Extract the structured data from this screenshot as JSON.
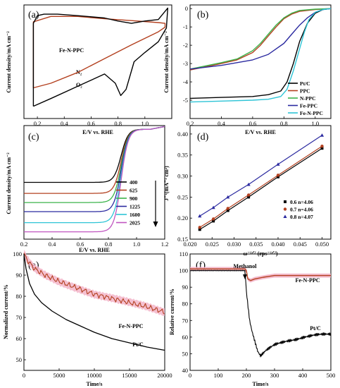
{
  "chart_data": [
    {
      "type": "line",
      "panel": "(a)",
      "xlabel": "E/V vs. RHE",
      "ylabel": "Current density/mA cm⁻²",
      "xlim": [
        0.1,
        1.2
      ],
      "xticks": [
        0.2,
        0.4,
        0.6,
        0.8,
        1.0
      ],
      "title": "Fe-N-PPC",
      "annotations": [
        "N₂",
        "O₂"
      ],
      "series": [
        {
          "name": "N2",
          "color": "#b3401f",
          "x": [
            0.17,
            0.3,
            0.5,
            0.7,
            0.9,
            1.1,
            1.15,
            1.15,
            1.1,
            0.9,
            0.7,
            0.5,
            0.3,
            0.17,
            0.17
          ],
          "y": [
            -2.6,
            -2.3,
            -1.6,
            -0.7,
            0.2,
            1.05,
            1.35,
            1.6,
            1.65,
            1.78,
            1.9,
            2.05,
            2.05,
            1.7,
            -2.6
          ]
        },
        {
          "name": "O2",
          "color": "#000000",
          "x": [
            0.17,
            0.3,
            0.5,
            0.7,
            0.78,
            0.82,
            0.86,
            0.92,
            1.0,
            1.1,
            1.16,
            1.17,
            1.1,
            1.0,
            0.9,
            0.8,
            0.7,
            0.5,
            0.35,
            0.25,
            0.2,
            0.17,
            0.17
          ],
          "y": [
            -3.8,
            -3.3,
            -2.5,
            -1.7,
            -2.3,
            -3.1,
            -2.7,
            -0.9,
            -0.3,
            0.4,
            1.3,
            2.6,
            1.85,
            1.75,
            1.6,
            1.75,
            1.95,
            2.1,
            2.2,
            2.2,
            2.1,
            1.6,
            -3.8
          ]
        }
      ]
    },
    {
      "type": "line",
      "panel": "(b)",
      "xlabel": "E/V vs. RHE",
      "ylabel": "Current density/mA cm⁻²",
      "xlim": [
        0.2,
        1.1
      ],
      "ylim": [
        -6,
        0.2
      ],
      "xticks": [
        0.2,
        0.4,
        0.6,
        0.8,
        1.0
      ],
      "yticks": [
        0,
        -1,
        -2,
        -3,
        -4,
        -5
      ],
      "series": [
        {
          "name": "Pt/C",
          "color": "#000000",
          "x": [
            0.2,
            0.4,
            0.6,
            0.7,
            0.78,
            0.82,
            0.86,
            0.9,
            0.95,
            1.0,
            1.05,
            1.1
          ],
          "y": [
            -4.9,
            -4.85,
            -4.8,
            -4.7,
            -4.5,
            -4.0,
            -3.0,
            -1.8,
            -0.8,
            -0.25,
            -0.05,
            0
          ]
        },
        {
          "name": "PPC",
          "color": "#b3401f",
          "x": [
            0.2,
            0.4,
            0.5,
            0.6,
            0.65,
            0.7,
            0.75,
            0.8,
            0.85,
            0.9,
            1.0,
            1.1
          ],
          "y": [
            -3.35,
            -3.0,
            -2.8,
            -2.4,
            -2.0,
            -1.5,
            -1.0,
            -0.55,
            -0.3,
            -0.15,
            -0.05,
            0
          ]
        },
        {
          "name": "N-PPC",
          "color": "#3bb34a",
          "x": [
            0.2,
            0.4,
            0.5,
            0.6,
            0.65,
            0.7,
            0.75,
            0.8,
            0.85,
            0.9,
            1.0,
            1.1
          ],
          "y": [
            -3.3,
            -2.95,
            -2.75,
            -2.3,
            -1.9,
            -1.4,
            -0.9,
            -0.5,
            -0.25,
            -0.1,
            -0.03,
            0
          ]
        },
        {
          "name": "Fe-PPC",
          "color": "#2b2aa0",
          "x": [
            0.2,
            0.4,
            0.6,
            0.7,
            0.8,
            0.85,
            0.9,
            0.95,
            1.0,
            1.05,
            1.1
          ],
          "y": [
            -3.3,
            -3.1,
            -2.8,
            -2.5,
            -1.9,
            -1.4,
            -0.9,
            -0.5,
            -0.2,
            -0.05,
            0
          ]
        },
        {
          "name": "Fe-N-PPC",
          "color": "#2ec4d6",
          "x": [
            0.2,
            0.4,
            0.6,
            0.7,
            0.78,
            0.82,
            0.86,
            0.9,
            0.93,
            0.96,
            1.0,
            1.05,
            1.1
          ],
          "y": [
            -5.1,
            -5.05,
            -5.0,
            -4.95,
            -4.8,
            -4.4,
            -3.4,
            -2.2,
            -1.3,
            -0.6,
            -0.2,
            -0.05,
            0
          ]
        }
      ]
    },
    {
      "type": "line",
      "panel": "(c)",
      "xlabel": "E/V vs. RHE",
      "ylabel": "Current density/mA cm⁻²",
      "xlim": [
        0.2,
        1.2
      ],
      "ylim": [
        -6,
        0.2
      ],
      "xticks": [
        0.2,
        0.4,
        0.6,
        0.8,
        1.0,
        1.2
      ],
      "series": [
        {
          "name": "400",
          "color": "#000000",
          "plateau": -2.9
        },
        {
          "name": "625",
          "color": "#b3401f",
          "plateau": -3.5
        },
        {
          "name": "900",
          "color": "#3bb34a",
          "plateau": -4.0
        },
        {
          "name": "1225",
          "color": "#2b2aa0",
          "plateau": -4.5
        },
        {
          "name": "1600",
          "color": "#2ec4d6",
          "plateau": -5.1
        },
        {
          "name": "2025",
          "color": "#c055c0",
          "plateau": -5.6
        }
      ]
    },
    {
      "type": "scatter",
      "panel": "(d)",
      "xlabel": "ω⁻¹ᐟ² (rps⁻¹ᐟ²)",
      "ylabel": "J⁻¹(mA⁻¹ cm²)",
      "xlim": [
        0.02,
        0.052
      ],
      "ylim": [
        0.15,
        0.42
      ],
      "xticks": [
        0.02,
        0.025,
        0.03,
        0.035,
        0.04,
        0.045,
        0.05
      ],
      "yticks": [
        0.15,
        0.2,
        0.25,
        0.3,
        0.35,
        0.4
      ],
      "x": [
        0.0222,
        0.0253,
        0.0286,
        0.0333,
        0.04,
        0.05
      ],
      "series": [
        {
          "name": "0.6  n=4.06",
          "color": "#000000",
          "marker": "square",
          "values": [
            0.173,
            0.193,
            0.218,
            0.25,
            0.298,
            0.366
          ]
        },
        {
          "name": "0.7  n=4.06",
          "color": "#b3401f",
          "marker": "circle",
          "values": [
            0.178,
            0.198,
            0.223,
            0.255,
            0.302,
            0.371
          ]
        },
        {
          "name": "0.8  n=4.07",
          "color": "#2b2aa0",
          "marker": "triangle",
          "values": [
            0.205,
            0.225,
            0.25,
            0.28,
            0.328,
            0.397
          ]
        }
      ]
    },
    {
      "type": "line",
      "panel": "(e)",
      "xlabel": "Time/s",
      "ylabel": "Normalized current/%",
      "xlim": [
        0,
        20000
      ],
      "ylim": [
        45,
        100
      ],
      "xticks": [
        0,
        5000,
        10000,
        15000,
        20000
      ],
      "yticks": [
        50,
        60,
        70,
        80,
        90,
        100
      ],
      "series": [
        {
          "name": "Fe-N-PPC",
          "color": "#b3401f",
          "x": [
            0,
            500,
            1500,
            3000,
            5000,
            7500,
            10000,
            12500,
            15000,
            17500,
            19500,
            20000
          ],
          "values": [
            100,
            97,
            93,
            90,
            87,
            84,
            81,
            79,
            77,
            75,
            73,
            72.5
          ]
        },
        {
          "name": "Pt/C",
          "color": "#000000",
          "x": [
            0,
            300,
            800,
            1500,
            2500,
            4000,
            6000,
            8000,
            10000,
            12500,
            15000,
            17500,
            20000
          ],
          "values": [
            100,
            93,
            86,
            81,
            77,
            73,
            69,
            66,
            63,
            60,
            58,
            56,
            54.5
          ]
        }
      ]
    },
    {
      "type": "line",
      "panel": "(f)",
      "xlabel": "Time/s",
      "ylabel": "Relative current/%",
      "xlim": [
        0,
        500
      ],
      "ylim": [
        40,
        110
      ],
      "xticks": [
        0,
        100,
        200,
        300,
        400,
        500
      ],
      "yticks": [
        40,
        50,
        60,
        70,
        80,
        90,
        100,
        110
      ],
      "annotation": "Methanol",
      "series": [
        {
          "name": "Fe-N-PPC",
          "color": "#b3401f",
          "x": [
            0,
            100,
            195,
            200,
            205,
            215,
            230,
            260,
            300,
            400,
            500
          ],
          "values": [
            101,
            101,
            101,
            100,
            95,
            94,
            95,
            96,
            97,
            97,
            97
          ]
        },
        {
          "name": "Pt/C",
          "color": "#000000",
          "x": [
            0,
            100,
            195,
            200,
            205,
            212,
            220,
            230,
            240,
            250,
            270,
            300,
            350,
            400,
            450,
            500
          ],
          "values": [
            100,
            100,
            100,
            88,
            80,
            70,
            64,
            58,
            52,
            49,
            52,
            55,
            58,
            60,
            61,
            62
          ]
        }
      ]
    }
  ],
  "panels": {
    "a": {
      "label": "(a)",
      "xlabel": "E/V vs. RHE",
      "ylabel": "Current density/mA cm⁻²",
      "title": "Fe-N-PPC",
      "n2": "N₂",
      "o2": "O₂",
      "xticks": [
        "0.2",
        "0.4",
        "0.6",
        "0.8",
        "1.0"
      ]
    },
    "b": {
      "label": "(b)",
      "xlabel": "E/V vs. RHE",
      "ylabel": "Current density/mA cm⁻²",
      "xticks": [
        "0.2",
        "0.4",
        "0.6",
        "0.8",
        "1.0"
      ],
      "yticks": [
        "0",
        "-1",
        "-2",
        "-3",
        "-4",
        "-5"
      ]
    },
    "c": {
      "label": "(c)",
      "xlabel": "E/V vs. RHE",
      "ylabel": "Current density/mA cm⁻²",
      "xticks": [
        "0.2",
        "0.4",
        "0.6",
        "0.8",
        "1.0",
        "1.2"
      ]
    },
    "d": {
      "label": "(d)",
      "xlabel": "ω⁻¹ᐟ² (rps⁻¹ᐟ²)",
      "ylabel": "J⁻¹(mA⁻¹ cm²)",
      "xticks": [
        "0.020",
        "0.025",
        "0.030",
        "0.035",
        "0.040",
        "0.045",
        "0.050"
      ],
      "yticks": [
        "0.15",
        "0.20",
        "0.25",
        "0.30",
        "0.35",
        "0.40"
      ]
    },
    "e": {
      "label": "(e)",
      "xlabel": "Time/s",
      "ylabel": "Normalized current/%",
      "lbl1": "Fe-N-PPC",
      "lbl2": "Pt/C",
      "xticks": [
        "0",
        "5000",
        "10000",
        "15000",
        "20000"
      ],
      "yticks": [
        "50",
        "60",
        "70",
        "80",
        "90",
        "100"
      ]
    },
    "f": {
      "label": "(f)",
      "xlabel": "Time/s",
      "ylabel": "Relative current/%",
      "lbl1": "Fe-N-PPC",
      "lbl2": "Pt/C",
      "methanol": "Methanol",
      "xticks": [
        "0",
        "100",
        "200",
        "300",
        "400",
        "500"
      ],
      "yticks": [
        "40",
        "50",
        "60",
        "70",
        "80",
        "90",
        "100",
        "110"
      ]
    }
  }
}
